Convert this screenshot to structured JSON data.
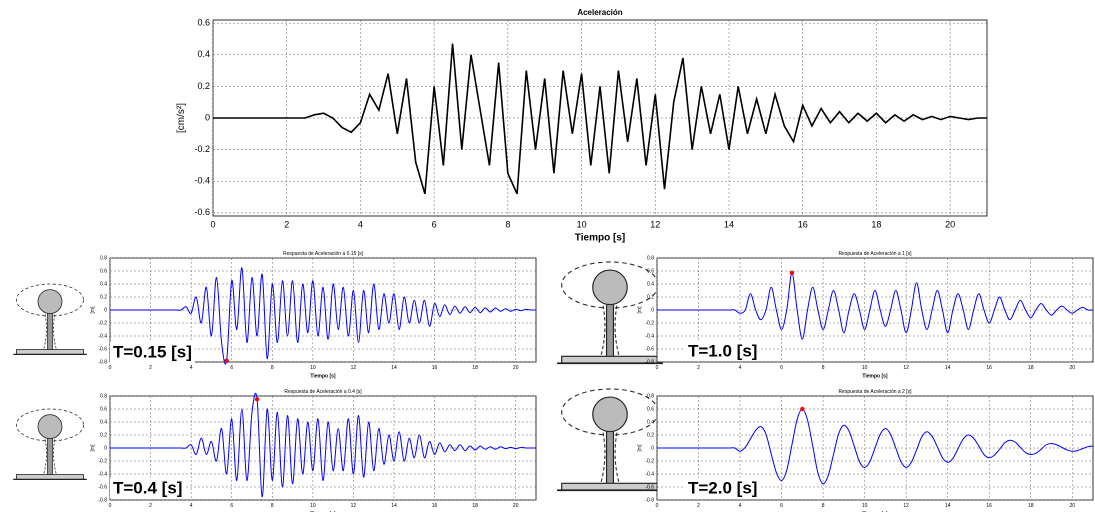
{
  "chart_data": [
    {
      "type": "line",
      "title": "Aceleración",
      "xlabel": "Tiempo [s]",
      "ylabel": "[cm/s²]",
      "color": "#000000",
      "xlim": [
        0,
        21
      ],
      "ylim": [
        -0.62,
        0.62
      ],
      "xticks": [
        0,
        2,
        4,
        6,
        8,
        10,
        12,
        14,
        16,
        18,
        20
      ],
      "yticks": [
        -0.6,
        -0.4,
        -0.2,
        0,
        0.2,
        0.4,
        0.6
      ],
      "grid": true,
      "x": [
        0,
        0.25,
        0.5,
        0.75,
        1,
        1.25,
        1.5,
        1.75,
        2,
        2.25,
        2.5,
        2.75,
        3,
        3.25,
        3.5,
        3.75,
        4,
        4.25,
        4.5,
        4.75,
        5,
        5.25,
        5.5,
        5.75,
        6,
        6.25,
        6.5,
        6.75,
        7,
        7.25,
        7.5,
        7.75,
        8,
        8.25,
        8.5,
        8.75,
        9,
        9.25,
        9.5,
        9.75,
        10,
        10.25,
        10.5,
        10.75,
        11,
        11.25,
        11.5,
        11.75,
        12,
        12.25,
        12.5,
        12.75,
        13,
        13.25,
        13.5,
        13.75,
        14,
        14.25,
        14.5,
        14.75,
        15,
        15.25,
        15.5,
        15.75,
        16,
        16.25,
        16.5,
        16.75,
        17,
        17.25,
        17.5,
        17.75,
        18,
        18.25,
        18.5,
        18.75,
        19,
        19.25,
        19.5,
        19.75,
        20,
        20.25,
        20.5,
        20.75,
        21
      ],
      "values": [
        0,
        0,
        0,
        0,
        0,
        0,
        0,
        0,
        0,
        0,
        0,
        0.02,
        0.03,
        0,
        -0.06,
        -0.09,
        -0.03,
        0.15,
        0.05,
        0.28,
        -0.1,
        0.25,
        -0.28,
        -0.48,
        0.2,
        -0.3,
        0.47,
        -0.2,
        0.4,
        0.05,
        -0.3,
        0.35,
        -0.35,
        -0.48,
        0.3,
        -0.2,
        0.25,
        -0.35,
        0.3,
        -0.1,
        0.28,
        -0.3,
        0.2,
        -0.35,
        0.3,
        -0.15,
        0.25,
        -0.3,
        0.15,
        -0.45,
        0.1,
        0.38,
        -0.2,
        0.2,
        -0.1,
        0.15,
        -0.2,
        0.2,
        -0.1,
        0.12,
        -0.1,
        0.15,
        -0.05,
        -0.15,
        0.08,
        -0.05,
        0.06,
        -0.03,
        0.04,
        -0.03,
        0.03,
        -0.02,
        0.03,
        -0.03,
        0.02,
        -0.02,
        0.02,
        -0.01,
        0.01,
        -0.01,
        0.01,
        0,
        -0.01,
        0,
        0
      ]
    },
    {
      "type": "line",
      "title": "Respuesta de Aceleración a 0.15 [s]",
      "xlabel": "Tiempo [s]",
      "ylabel": "[m]",
      "annotation": "T=0.15 [s]",
      "color": "#0000ff",
      "xlim": [
        0,
        21
      ],
      "ylim": [
        -0.8,
        0.8
      ],
      "xticks": [
        0,
        2,
        4,
        6,
        8,
        10,
        12,
        14,
        16,
        18,
        20
      ],
      "yticks": [
        -0.8,
        -0.6,
        -0.4,
        -0.2,
        0,
        0.2,
        0.4,
        0.6,
        0.8
      ],
      "grid": true,
      "x": [
        0,
        0.25,
        0.5,
        0.75,
        1,
        1.25,
        1.5,
        1.75,
        2,
        2.25,
        2.5,
        2.75,
        3,
        3.25,
        3.5,
        3.75,
        4,
        4.25,
        4.5,
        4.75,
        5,
        5.25,
        5.5,
        5.75,
        6,
        6.25,
        6.5,
        6.75,
        7,
        7.25,
        7.5,
        7.75,
        8,
        8.25,
        8.5,
        8.75,
        9,
        9.25,
        9.5,
        9.75,
        10,
        10.25,
        10.5,
        10.75,
        11,
        11.25,
        11.5,
        11.75,
        12,
        12.25,
        12.5,
        12.75,
        13,
        13.25,
        13.5,
        13.75,
        14,
        14.25,
        14.5,
        14.75,
        15,
        15.25,
        15.5,
        15.75,
        16,
        16.25,
        16.5,
        16.75,
        17,
        17.25,
        17.5,
        17.75,
        18,
        18.25,
        18.5,
        18.75,
        19,
        19.25,
        19.5,
        19.75,
        20,
        20.25,
        20.5,
        20.75,
        21
      ],
      "values": [
        0,
        0,
        0,
        0,
        0,
        0,
        0,
        0,
        0,
        0,
        0,
        0,
        0,
        0,
        0,
        0.05,
        -0.05,
        0.2,
        -0.2,
        0.35,
        -0.4,
        0.5,
        -0.5,
        -0.78,
        0.45,
        -0.3,
        0.65,
        -0.5,
        0.5,
        -0.4,
        0.55,
        -0.75,
        0.4,
        -0.5,
        0.45,
        -0.4,
        0.45,
        -0.5,
        0.4,
        -0.35,
        0.45,
        -0.4,
        0.35,
        -0.45,
        0.4,
        -0.3,
        0.35,
        -0.4,
        0.3,
        -0.5,
        0.3,
        -0.35,
        0.4,
        -0.3,
        0.25,
        -0.2,
        0.25,
        -0.3,
        0.2,
        -0.2,
        0.15,
        -0.2,
        0.15,
        -0.25,
        0.1,
        -0.1,
        0.08,
        -0.07,
        0.06,
        -0.05,
        0.05,
        -0.04,
        0.04,
        -0.04,
        0.03,
        -0.03,
        0.03,
        -0.02,
        0.02,
        -0.02,
        0.01,
        -0.01,
        0.01,
        0,
        0
      ],
      "peak": {
        "x": 5.75,
        "y": -0.78,
        "color": "#ff0000"
      }
    },
    {
      "type": "line",
      "title": "Respuesta de Aceleración a 1 [s]",
      "xlabel": "Tiempo [s]",
      "ylabel": "[m]",
      "annotation": "T=1.0 [s]",
      "color": "#0000ff",
      "xlim": [
        0,
        21
      ],
      "ylim": [
        -0.8,
        0.8
      ],
      "xticks": [
        0,
        2,
        4,
        6,
        8,
        10,
        12,
        14,
        16,
        18,
        20
      ],
      "yticks": [
        -0.8,
        -0.6,
        -0.4,
        -0.2,
        0,
        0.2,
        0.4,
        0.6,
        0.8
      ],
      "grid": true,
      "x": [
        0,
        0.25,
        0.5,
        0.75,
        1,
        1.25,
        1.5,
        1.75,
        2,
        2.25,
        2.5,
        2.75,
        3,
        3.25,
        3.5,
        3.75,
        4,
        4.25,
        4.5,
        4.75,
        5,
        5.25,
        5.5,
        5.75,
        6,
        6.25,
        6.5,
        6.75,
        7,
        7.25,
        7.5,
        7.75,
        8,
        8.25,
        8.5,
        8.75,
        9,
        9.25,
        9.5,
        9.75,
        10,
        10.25,
        10.5,
        10.75,
        11,
        11.25,
        11.5,
        11.75,
        12,
        12.25,
        12.5,
        12.75,
        13,
        13.25,
        13.5,
        13.75,
        14,
        14.25,
        14.5,
        14.75,
        15,
        15.25,
        15.5,
        15.75,
        16,
        16.25,
        16.5,
        16.75,
        17,
        17.25,
        17.5,
        17.75,
        18,
        18.25,
        18.5,
        18.75,
        19,
        19.25,
        19.5,
        19.75,
        20,
        20.25,
        20.5,
        20.75,
        21
      ],
      "values": [
        0,
        0,
        0,
        0,
        0,
        0,
        0,
        0,
        0,
        0,
        0,
        0,
        0,
        0,
        0,
        0,
        -0.05,
        0,
        0.25,
        0,
        -0.15,
        0,
        0.35,
        0,
        -0.3,
        0,
        0.57,
        0,
        -0.45,
        0,
        0.35,
        0,
        -0.3,
        0,
        0.3,
        0,
        -0.35,
        0,
        0.25,
        0,
        -0.3,
        0,
        0.3,
        0,
        -0.25,
        0,
        0.3,
        0,
        -0.35,
        0,
        0.42,
        0,
        -0.3,
        0,
        0.3,
        0,
        -0.35,
        0,
        0.25,
        0,
        -0.3,
        0,
        0.25,
        0,
        -0.2,
        0,
        0.2,
        0,
        -0.15,
        0,
        0.15,
        0,
        -0.12,
        0,
        0.1,
        0,
        -0.08,
        0,
        0.06,
        0,
        -0.05,
        0,
        0.04,
        0,
        0
      ],
      "peak": {
        "x": 6.5,
        "y": 0.57,
        "color": "#ff0000"
      }
    },
    {
      "type": "line",
      "title": "Respuesta de Aceleración a 0.4 [s]",
      "xlabel": "Tiempo [s]",
      "ylabel": "[m]",
      "annotation": "T=0.4 [s]",
      "color": "#0000ff",
      "xlim": [
        0,
        21
      ],
      "ylim": [
        -0.8,
        0.8
      ],
      "xticks": [
        0,
        2,
        4,
        6,
        8,
        10,
        12,
        14,
        16,
        18,
        20
      ],
      "yticks": [
        -0.8,
        -0.6,
        -0.4,
        -0.2,
        0,
        0.2,
        0.4,
        0.6,
        0.8
      ],
      "grid": true,
      "x": [
        0,
        0.25,
        0.5,
        0.75,
        1,
        1.25,
        1.5,
        1.75,
        2,
        2.25,
        2.5,
        2.75,
        3,
        3.25,
        3.5,
        3.75,
        4,
        4.25,
        4.5,
        4.75,
        5,
        5.25,
        5.5,
        5.75,
        6,
        6.25,
        6.5,
        6.75,
        7,
        7.25,
        7.5,
        7.75,
        8,
        8.25,
        8.5,
        8.75,
        9,
        9.25,
        9.5,
        9.75,
        10,
        10.25,
        10.5,
        10.75,
        11,
        11.25,
        11.5,
        11.75,
        12,
        12.25,
        12.5,
        12.75,
        13,
        13.25,
        13.5,
        13.75,
        14,
        14.25,
        14.5,
        14.75,
        15,
        15.25,
        15.5,
        15.75,
        16,
        16.25,
        16.5,
        16.75,
        17,
        17.25,
        17.5,
        17.75,
        18,
        18.25,
        18.5,
        18.75,
        19,
        19.25,
        19.5,
        19.75,
        20,
        20.25,
        20.5,
        20.75,
        21
      ],
      "values": [
        0,
        0,
        0,
        0,
        0,
        0,
        0,
        0,
        0,
        0,
        0,
        0,
        0,
        0,
        0,
        0,
        0.05,
        -0.1,
        0.15,
        -0.1,
        0.1,
        -0.2,
        0.3,
        -0.4,
        0.45,
        -0.5,
        0.6,
        -0.5,
        0.55,
        0.75,
        -0.75,
        0.6,
        -0.5,
        0.55,
        -0.6,
        0.5,
        -0.55,
        0.45,
        -0.4,
        0.4,
        -0.35,
        0.45,
        -0.5,
        0.4,
        -0.35,
        0.3,
        -0.35,
        0.45,
        -0.4,
        0.5,
        -0.45,
        0.4,
        -0.35,
        0.3,
        -0.25,
        0.2,
        -0.2,
        0.25,
        -0.2,
        0.15,
        -0.15,
        0.2,
        -0.15,
        0.1,
        -0.1,
        0.08,
        -0.06,
        0.05,
        -0.04,
        0.05,
        -0.04,
        0.03,
        -0.03,
        0.03,
        -0.02,
        0.02,
        -0.02,
        0.02,
        -0.01,
        0.01,
        -0.01,
        0.01,
        0,
        0,
        0
      ],
      "peak": {
        "x": 7.25,
        "y": 0.75,
        "color": "#ff0000"
      }
    },
    {
      "type": "line",
      "title": "Respuesta de Aceleración a 2 [s]",
      "xlabel": "Tiempo [s]",
      "ylabel": "[m]",
      "annotation": "T=2.0 [s]",
      "color": "#0000ff",
      "xlim": [
        0,
        21
      ],
      "ylim": [
        -0.8,
        0.8
      ],
      "xticks": [
        0,
        2,
        4,
        6,
        8,
        10,
        12,
        14,
        16,
        18,
        20
      ],
      "yticks": [
        -0.8,
        -0.6,
        -0.4,
        -0.2,
        0,
        0.2,
        0.4,
        0.6,
        0.8
      ],
      "grid": true,
      "x": [
        0,
        0.25,
        0.5,
        0.75,
        1,
        1.25,
        1.5,
        1.75,
        2,
        2.25,
        2.5,
        2.75,
        3,
        3.25,
        3.5,
        3.75,
        4,
        4.25,
        4.5,
        4.75,
        5,
        5.25,
        5.5,
        5.75,
        6,
        6.25,
        6.5,
        6.75,
        7,
        7.25,
        7.5,
        7.75,
        8,
        8.25,
        8.5,
        8.75,
        9,
        9.25,
        9.5,
        9.75,
        10,
        10.25,
        10.5,
        10.75,
        11,
        11.25,
        11.5,
        11.75,
        12,
        12.25,
        12.5,
        12.75,
        13,
        13.25,
        13.5,
        13.75,
        14,
        14.25,
        14.5,
        14.75,
        15,
        15.25,
        15.5,
        15.75,
        16,
        16.25,
        16.5,
        16.75,
        17,
        17.25,
        17.5,
        17.75,
        18,
        18.25,
        18.5,
        18.75,
        19,
        19.25,
        19.5,
        19.75,
        20,
        20.25,
        20.5,
        20.75,
        21
      ],
      "values": [
        0,
        0,
        0,
        0,
        0,
        0,
        0,
        0,
        0,
        0,
        0,
        0,
        0,
        0,
        0,
        0,
        -0.05,
        0.01,
        0.14,
        0.27,
        0.33,
        0.21,
        -0.09,
        -0.38,
        -0.5,
        -0.34,
        0.05,
        0.44,
        0.6,
        0.43,
        0.03,
        -0.38,
        -0.55,
        -0.42,
        -0.1,
        0.22,
        0.35,
        0.26,
        0.03,
        -0.21,
        -0.3,
        -0.21,
        0,
        0.21,
        0.3,
        0.21,
        0,
        -0.21,
        -0.3,
        -0.22,
        -0.03,
        0.17,
        0.25,
        0.18,
        0.02,
        -0.15,
        -0.22,
        -0.16,
        -0.01,
        0.14,
        0.2,
        0.15,
        0.03,
        -0.1,
        -0.15,
        -0.11,
        -0.02,
        0.08,
        0.12,
        0.09,
        0.01,
        -0.07,
        -0.1,
        -0.08,
        -0.02,
        0.05,
        0.07,
        0.05,
        0.01,
        -0.03,
        -0.05,
        -0.04,
        -0.01,
        0.02,
        0.03
      ],
      "peak": {
        "x": 7,
        "y": 0.6,
        "color": "#ff0000"
      }
    }
  ]
}
